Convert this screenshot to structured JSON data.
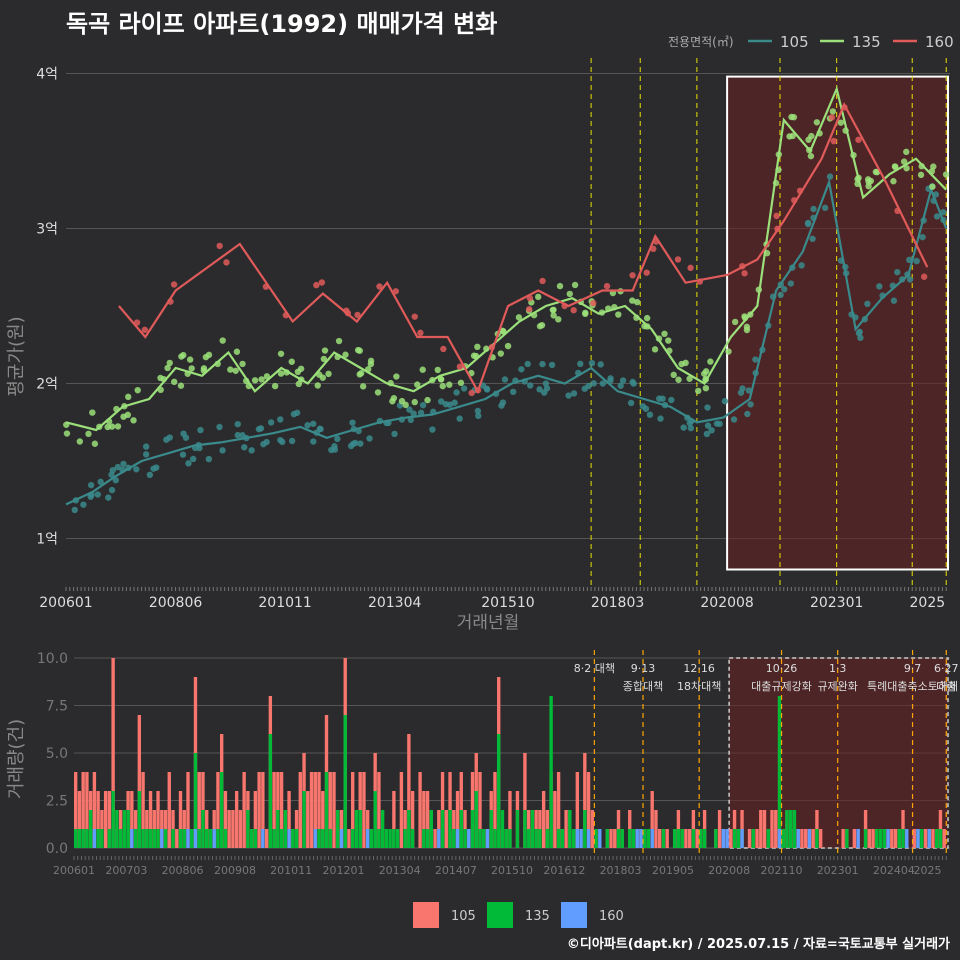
{
  "title": "독곡 라이프 아파트(1992) 매매가격 변화",
  "footer": "©디아파트(dapt.kr) / 2025.07.15 / 자료=국토교통부 실거래가",
  "colors": {
    "s105_line": "#3a8a8c",
    "s135_line": "#9be07a",
    "s160_line": "#e05a5a",
    "b105": "#f8766d",
    "b135": "#00ba38",
    "b160": "#619cff",
    "vline": "#e8e000",
    "vline_bottom": "#ffa500",
    "highlight": "#6a2020"
  },
  "chart_data": [
    {
      "type": "line",
      "ylabel": "평균가(원)",
      "xlabel": "거래년월",
      "y_ticks": [
        {
          "v": 1,
          "label": "1억"
        },
        {
          "v": 2,
          "label": "2억"
        },
        {
          "v": 3,
          "label": "3억"
        },
        {
          "v": 4,
          "label": "4억"
        }
      ],
      "ylim": [
        0.7,
        4.1
      ],
      "x_range": [
        "2006-01",
        "2025-07"
      ],
      "x_ticks": [
        "200601",
        "200806",
        "201011",
        "201304",
        "201510",
        "201803",
        "202008",
        "202301",
        "2025"
      ],
      "legend": {
        "title": "전용면적(㎡)",
        "items": [
          "105",
          "135",
          "160"
        ]
      },
      "highlight": {
        "from": "2020-08",
        "to": "2025-07",
        "ymin": 0.8,
        "ymax": 3.98
      },
      "vlines": [
        "2017-08",
        "2018-09",
        "2019-12",
        "2021-10",
        "2023-01",
        "2024-09",
        "2025-06"
      ],
      "series": [
        {
          "name": "105",
          "points": [
            [
              "2006-01",
              1.22
            ],
            [
              "2006-08",
              1.3
            ],
            [
              "2007-02",
              1.4
            ],
            [
              "2007-09",
              1.5
            ],
            [
              "2008-04",
              1.55
            ],
            [
              "2008-11",
              1.6
            ],
            [
              "2009-06",
              1.62
            ],
            [
              "2010-01",
              1.65
            ],
            [
              "2010-08",
              1.68
            ],
            [
              "2011-03",
              1.72
            ],
            [
              "2011-10",
              1.65
            ],
            [
              "2012-05",
              1.7
            ],
            [
              "2012-12",
              1.75
            ],
            [
              "2013-07",
              1.78
            ],
            [
              "2014-02",
              1.8
            ],
            [
              "2014-09",
              1.85
            ],
            [
              "2015-04",
              1.9
            ],
            [
              "2015-11",
              2.0
            ],
            [
              "2016-06",
              2.05
            ],
            [
              "2017-01",
              2.0
            ],
            [
              "2017-08",
              2.1
            ],
            [
              "2018-03",
              1.95
            ],
            [
              "2018-10",
              1.9
            ],
            [
              "2019-05",
              1.85
            ],
            [
              "2019-12",
              1.75
            ],
            [
              "2020-07",
              1.78
            ],
            [
              "2021-02",
              1.9
            ],
            [
              "2021-09",
              2.6
            ],
            [
              "2022-04",
              2.85
            ],
            [
              "2022-11",
              3.3
            ],
            [
              "2023-06",
              2.35
            ],
            [
              "2024-01",
              2.55
            ],
            [
              "2024-08",
              2.7
            ],
            [
              "2025-02",
              3.25
            ],
            [
              "2025-06",
              3.0
            ]
          ]
        },
        {
          "name": "135",
          "points": [
            [
              "2006-01",
              1.75
            ],
            [
              "2006-09",
              1.7
            ],
            [
              "2007-04",
              1.85
            ],
            [
              "2007-11",
              1.9
            ],
            [
              "2008-06",
              2.1
            ],
            [
              "2009-01",
              2.05
            ],
            [
              "2009-08",
              2.2
            ],
            [
              "2010-03",
              1.95
            ],
            [
              "2010-10",
              2.1
            ],
            [
              "2011-05",
              2.0
            ],
            [
              "2011-12",
              2.2
            ],
            [
              "2012-07",
              2.1
            ],
            [
              "2013-02",
              2.0
            ],
            [
              "2013-09",
              1.95
            ],
            [
              "2014-04",
              2.05
            ],
            [
              "2014-11",
              2.1
            ],
            [
              "2015-06",
              2.25
            ],
            [
              "2016-01",
              2.4
            ],
            [
              "2016-08",
              2.5
            ],
            [
              "2017-03",
              2.55
            ],
            [
              "2017-10",
              2.45
            ],
            [
              "2018-05",
              2.5
            ],
            [
              "2018-12",
              2.35
            ],
            [
              "2019-07",
              2.1
            ],
            [
              "2020-02",
              2.0
            ],
            [
              "2020-09",
              2.3
            ],
            [
              "2021-04",
              2.5
            ],
            [
              "2021-11",
              3.7
            ],
            [
              "2022-06",
              3.5
            ],
            [
              "2023-01",
              3.9
            ],
            [
              "2023-08",
              3.2
            ],
            [
              "2024-03",
              3.35
            ],
            [
              "2024-10",
              3.45
            ],
            [
              "2025-06",
              3.25
            ]
          ]
        },
        {
          "name": "160",
          "points": [
            [
              "2007-03",
              2.5
            ],
            [
              "2007-10",
              2.3
            ],
            [
              "2008-06",
              2.6
            ],
            [
              "2009-11",
              2.9
            ],
            [
              "2011-01",
              2.4
            ],
            [
              "2011-09",
              2.58
            ],
            [
              "2012-06",
              2.4
            ],
            [
              "2013-02",
              2.65
            ],
            [
              "2013-10",
              2.3
            ],
            [
              "2014-06",
              2.3
            ],
            [
              "2015-02",
              1.95
            ],
            [
              "2015-10",
              2.5
            ],
            [
              "2016-06",
              2.6
            ],
            [
              "2017-02",
              2.5
            ],
            [
              "2017-11",
              2.6
            ],
            [
              "2018-07",
              2.6
            ],
            [
              "2019-01",
              2.95
            ],
            [
              "2019-09",
              2.65
            ],
            [
              "2020-08",
              2.7
            ],
            [
              "2021-04",
              2.8
            ],
            [
              "2021-11",
              3.05
            ],
            [
              "2022-09",
              3.45
            ],
            [
              "2023-03",
              3.8
            ],
            [
              "2024-02",
              3.3
            ],
            [
              "2025-01",
              2.75
            ]
          ]
        }
      ]
    },
    {
      "type": "bar",
      "ylabel": "거래량(건)",
      "ylim": [
        0,
        10
      ],
      "y_ticks": [
        "0.0",
        "2.5",
        "5.0",
        "7.5",
        "10.0"
      ],
      "x_ticks": [
        "200601",
        "200703",
        "200806",
        "200908",
        "201011",
        "201201",
        "201304",
        "201407",
        "201510",
        "201612",
        "201803",
        "201905",
        "202008",
        "202110",
        "202301",
        "202404",
        "2025"
      ],
      "legend": [
        "105",
        "135",
        "160"
      ],
      "annotations": [
        {
          "date": "2017-08",
          "line1": "8·2 대책",
          "line2": ""
        },
        {
          "date": "2018-09",
          "line1": "9·13",
          "line2": "종합대책"
        },
        {
          "date": "2019-12",
          "line1": "12·16",
          "line2": "18차대책"
        },
        {
          "date": "2021-10",
          "line1": "10·26",
          "line2": "대출규제강화"
        },
        {
          "date": "2023-01",
          "line1": "1·3",
          "line2": "규제완화"
        },
        {
          "date": "2024-09",
          "line1": "9·7",
          "line2": "특례대출축소토허제"
        },
        {
          "date": "2025-06",
          "line1": "6·27",
          "line2": "대출"
        }
      ],
      "monthly_peaks": [
        [
          "2006-03",
          4,
          1
        ],
        [
          "2006-11",
          10,
          3
        ],
        [
          "2007-06",
          7,
          3
        ],
        [
          "2008-09",
          9,
          5
        ],
        [
          "2009-04",
          6,
          4
        ],
        [
          "2010-05",
          8,
          6
        ],
        [
          "2011-02",
          5,
          3
        ],
        [
          "2011-08",
          7,
          4
        ],
        [
          "2012-01",
          10,
          7
        ],
        [
          "2012-09",
          5,
          3
        ],
        [
          "2013-06",
          6,
          2
        ],
        [
          "2014-05",
          4,
          2
        ],
        [
          "2014-12",
          5,
          3
        ],
        [
          "2015-06",
          9,
          6
        ],
        [
          "2016-01",
          5,
          2
        ],
        [
          "2016-08",
          4,
          8
        ],
        [
          "2017-05",
          5,
          2
        ],
        [
          "2018-02",
          2,
          1
        ],
        [
          "2018-11",
          3,
          1
        ],
        [
          "2019-06",
          2,
          1
        ],
        [
          "2020-04",
          1,
          1
        ],
        [
          "2021-09",
          6,
          8
        ],
        [
          "2022-07",
          2,
          1
        ],
        [
          "2023-08",
          2,
          1
        ],
        [
          "2024-06",
          2,
          1
        ],
        [
          "2025-04",
          3,
          1
        ]
      ]
    }
  ]
}
